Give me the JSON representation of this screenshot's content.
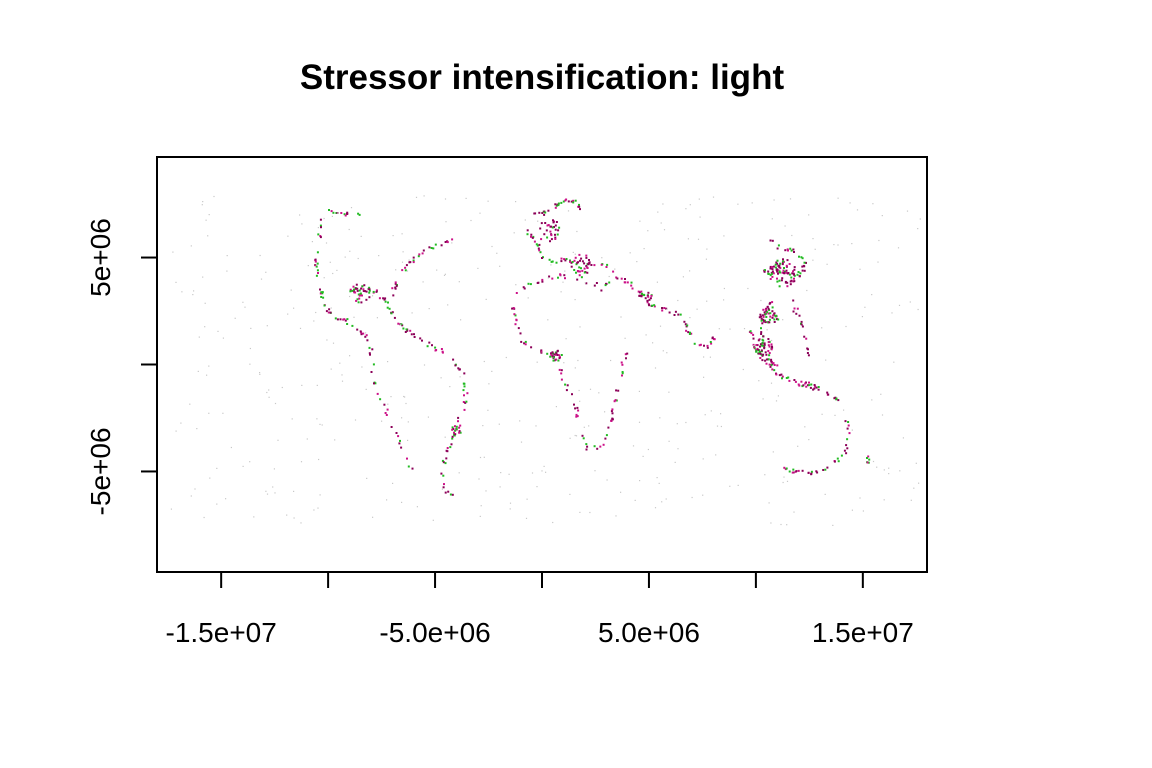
{
  "title": "Stressor intensification: light",
  "axes": {
    "x_ticks": [
      {
        "value": -15000000,
        "label": "-1.5e+07"
      },
      {
        "value": -10000000,
        "label": ""
      },
      {
        "value": -5000000,
        "label": "-5.0e+06"
      },
      {
        "value": 0,
        "label": ""
      },
      {
        "value": 5000000,
        "label": "5.0e+06"
      },
      {
        "value": 10000000,
        "label": ""
      },
      {
        "value": 15000000,
        "label": "1.5e+07"
      }
    ],
    "y_ticks": [
      {
        "value": 5000000,
        "label": "5e+06"
      },
      {
        "value": 0,
        "label": ""
      },
      {
        "value": -5000000,
        "label": "-5e+06"
      }
    ],
    "xlim": [
      -18000000,
      18000000
    ],
    "ylim": [
      -9700000,
      9700000
    ]
  },
  "colors": {
    "frame": "#000000",
    "high": "#8b0058",
    "mid": "#cc1188",
    "low": "#22bb22",
    "faint": "#c8c8c8"
  }
}
